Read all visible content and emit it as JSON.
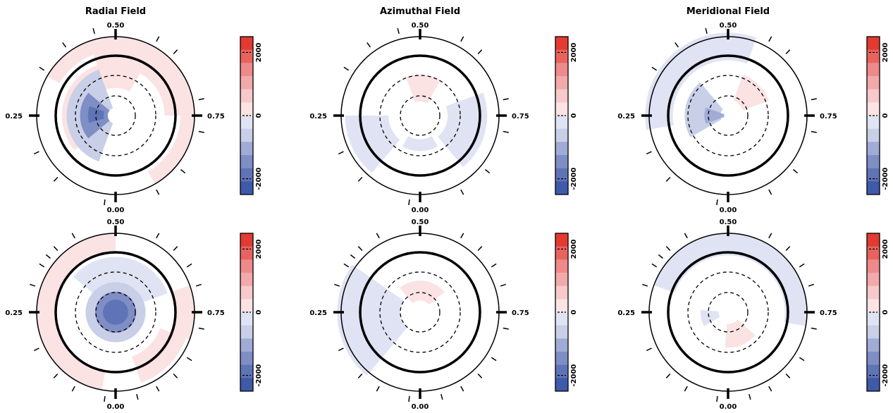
{
  "colors": {
    "ring": "#000000",
    "neg": [
      "#3e5aa8",
      "#5f74b6",
      "#7f8ec5",
      "#a0acd6",
      "#c8cfe7",
      "#dfe3f3"
    ],
    "pos": [
      "#fbe2e3",
      "#f7c9ca",
      "#f2a9aa",
      "#ee8a8b",
      "#e8635f",
      "#e33a31"
    ]
  },
  "chart_data": [
    {
      "type": "heatmap",
      "panel": "radial-top",
      "title": "Radial Field",
      "phase_labels": {
        "top": "0.50",
        "bottom": "0.00",
        "left": "0.25",
        "right": "0.75"
      },
      "colorbar": {
        "range": [
          -2500,
          2500
        ],
        "tick_labels": [
          "2000",
          "0",
          "-2000"
        ],
        "ticks": [
          2000,
          0,
          -2000
        ]
      },
      "observed_phases": [
        0.02,
        0.12,
        0.18,
        0.34,
        0.4,
        0.46,
        0.58,
        0.62,
        0.72,
        0.78,
        0.86,
        0.92
      ],
      "spots": [
        {
          "r0": 0.82,
          "r1": 1.0,
          "a0": 210,
          "a1": 420,
          "value": 400
        },
        {
          "r0": 0.62,
          "r1": 0.82,
          "a0": 250,
          "a1": 360,
          "value": 300
        },
        {
          "r0": 0.35,
          "r1": 0.68,
          "a0": 140,
          "a1": 300,
          "value": 200
        },
        {
          "r0": 0.1,
          "r1": 0.62,
          "a0": 110,
          "a1": 250,
          "value": -600
        },
        {
          "r0": 0.1,
          "r1": 0.45,
          "a0": 140,
          "a1": 220,
          "value": -1400
        },
        {
          "r0": 0.15,
          "r1": 0.35,
          "a0": 165,
          "a1": 200,
          "value": -2000
        }
      ]
    },
    {
      "type": "heatmap",
      "panel": "azimuthal-top",
      "title": "Azimuthal Field",
      "phase_labels": {
        "top": "0.50",
        "bottom": "0.00",
        "left": "0.25",
        "right": "0.75"
      },
      "colorbar": {
        "range": [
          -2500,
          2500
        ],
        "tick_labels": [
          "2000",
          "0",
          "-2000"
        ],
        "ticks": [
          2000,
          0,
          -2000
        ]
      },
      "observed_phases": [
        0.02,
        0.12,
        0.18,
        0.34,
        0.4,
        0.46,
        0.58,
        0.62,
        0.72,
        0.78,
        0.86,
        0.92
      ],
      "spots": [
        {
          "r0": 0.18,
          "r1": 0.52,
          "a0": 250,
          "a1": 300,
          "value": 300
        },
        {
          "r0": 0.4,
          "r1": 0.95,
          "a0": 130,
          "a1": 180,
          "value": -400
        },
        {
          "r0": 0.35,
          "r1": 0.85,
          "a0": -20,
          "a1": 50,
          "value": -400
        },
        {
          "r0": 0.3,
          "r1": 0.45,
          "a0": 60,
          "a1": 120,
          "value": -400
        }
      ]
    },
    {
      "type": "heatmap",
      "panel": "meridional-top",
      "title": "Meridional Field",
      "phase_labels": {
        "top": "0.50",
        "bottom": "0.00",
        "left": "0.25",
        "right": "0.75"
      },
      "colorbar": {
        "range": [
          -2500,
          2500
        ],
        "tick_labels": [
          "2000",
          "0",
          "-2000"
        ],
        "ticks": [
          2000,
          0,
          -2000
        ]
      },
      "observed_phases": [
        0.02,
        0.12,
        0.18,
        0.34,
        0.4,
        0.46,
        0.58,
        0.62,
        0.72,
        0.78,
        0.86,
        0.92
      ],
      "spots": [
        {
          "r0": 0.7,
          "r1": 1.05,
          "a0": 170,
          "a1": 290,
          "value": -400
        },
        {
          "r0": 0.2,
          "r1": 0.55,
          "a0": 290,
          "a1": 340,
          "value": 300
        },
        {
          "r0": 0.1,
          "r1": 0.55,
          "a0": 150,
          "a1": 230,
          "value": -500
        },
        {
          "r0": 0.05,
          "r1": 0.3,
          "a0": 160,
          "a1": 200,
          "value": -900
        }
      ]
    },
    {
      "type": "heatmap",
      "panel": "radial-bottom",
      "title": "",
      "phase_labels": {
        "top": "0.50",
        "bottom": "0.00",
        "left": "0.25",
        "right": "0.75"
      },
      "colorbar": {
        "range": [
          -2500,
          2500
        ],
        "tick_labels": [
          "2000",
          "0",
          "-2000"
        ],
        "ticks": [
          2000,
          0,
          -2000
        ]
      },
      "observed_phases": [
        0.02,
        0.08,
        0.12,
        0.18,
        0.3,
        0.34,
        0.36,
        0.38,
        0.42,
        0.58,
        0.62,
        0.66,
        0.7,
        0.78,
        0.84,
        0.88,
        0.92,
        0.96
      ],
      "spots": [
        {
          "r0": 0.75,
          "r1": 1.0,
          "a0": 100,
          "a1": 270,
          "value": 400
        },
        {
          "r0": 0.6,
          "r1": 0.95,
          "a0": 20,
          "a1": 70,
          "value": 400
        },
        {
          "r0": 0.75,
          "r1": 1.0,
          "a0": -20,
          "a1": 20,
          "value": 300
        },
        {
          "r0": 0.25,
          "r1": 0.7,
          "a0": 220,
          "a1": 340,
          "value": -400
        },
        {
          "r0": 0.0,
          "r1": 0.38,
          "a0": 0,
          "a1": 360,
          "value": -800
        },
        {
          "r0": 0.0,
          "r1": 0.26,
          "a0": 0,
          "a1": 360,
          "value": -1600
        },
        {
          "r0": 0.0,
          "r1": 0.16,
          "a0": 0,
          "a1": 360,
          "value": -2000
        }
      ]
    },
    {
      "type": "heatmap",
      "panel": "azimuthal-bottom",
      "title": "",
      "phase_labels": {
        "top": "0.50",
        "bottom": "0.00",
        "left": "0.25",
        "right": "0.75"
      },
      "colorbar": {
        "range": [
          -2500,
          2500
        ],
        "tick_labels": [
          "2000",
          "0",
          "-2000"
        ],
        "ticks": [
          2000,
          0,
          -2000
        ]
      },
      "observed_phases": [
        0.02,
        0.08,
        0.12,
        0.18,
        0.3,
        0.34,
        0.36,
        0.38,
        0.42,
        0.58,
        0.62,
        0.66,
        0.7,
        0.78,
        0.84,
        0.88,
        0.92,
        0.96
      ],
      "spots": [
        {
          "r0": 0.25,
          "r1": 1.05,
          "a0": 130,
          "a1": 215,
          "value": -400
        },
        {
          "r0": 0.15,
          "r1": 0.4,
          "a0": 230,
          "a1": 320,
          "value": 300
        }
      ]
    },
    {
      "type": "heatmap",
      "panel": "meridional-bottom",
      "title": "",
      "phase_labels": {
        "top": "0.50",
        "bottom": "0.00",
        "left": "0.25",
        "right": "0.75"
      },
      "colorbar": {
        "range": [
          -2500,
          2500
        ],
        "tick_labels": [
          "2000",
          "0",
          "-2000"
        ],
        "ticks": [
          2000,
          0,
          -2000
        ]
      },
      "observed_phases": [
        0.02,
        0.08,
        0.12,
        0.18,
        0.3,
        0.34,
        0.36,
        0.38,
        0.42,
        0.58,
        0.62,
        0.66,
        0.7,
        0.78,
        0.84,
        0.88,
        0.92,
        0.96
      ],
      "spots": [
        {
          "r0": 0.72,
          "r1": 1.0,
          "a0": 200,
          "a1": 370,
          "value": -400
        },
        {
          "r0": 0.15,
          "r1": 0.45,
          "a0": 40,
          "a1": 95,
          "value": 300
        },
        {
          "r0": 0.12,
          "r1": 0.35,
          "a0": 150,
          "a1": 185,
          "value": -400
        }
      ]
    }
  ]
}
